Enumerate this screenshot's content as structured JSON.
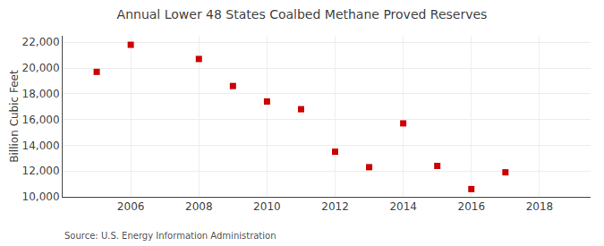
{
  "chart_data": {
    "type": "scatter",
    "title": "Annual Lower 48 States Coalbed Methane Proved Reserves",
    "ylabel": "Billion Cubic Feet",
    "annotations": [
      "Source: U.S. Energy Information Administration"
    ],
    "x": [
      2005,
      2006,
      2008,
      2009,
      2010,
      2011,
      2012,
      2013,
      2014,
      2015,
      2016,
      2017
    ],
    "values": [
      19700,
      21800,
      20700,
      18600,
      17400,
      16800,
      13500,
      12300,
      15700,
      12400,
      10600,
      11900
    ],
    "color": "#cc0000",
    "marker": "square",
    "xlim": [
      2004.0,
      2019.5
    ],
    "ylim": [
      10000,
      22500
    ],
    "xticks": [
      2006,
      2008,
      2010,
      2012,
      2014,
      2016,
      2018
    ],
    "yticks": [
      {
        "value": 10000,
        "label": "10,000"
      },
      {
        "value": 12000,
        "label": "12,000"
      },
      {
        "value": 14000,
        "label": "14,000"
      },
      {
        "value": 16000,
        "label": "16,000"
      },
      {
        "value": 18000,
        "label": "18,000"
      },
      {
        "value": 20000,
        "label": "20,000"
      },
      {
        "value": 22000,
        "label": "22,000"
      }
    ],
    "grid": true
  }
}
